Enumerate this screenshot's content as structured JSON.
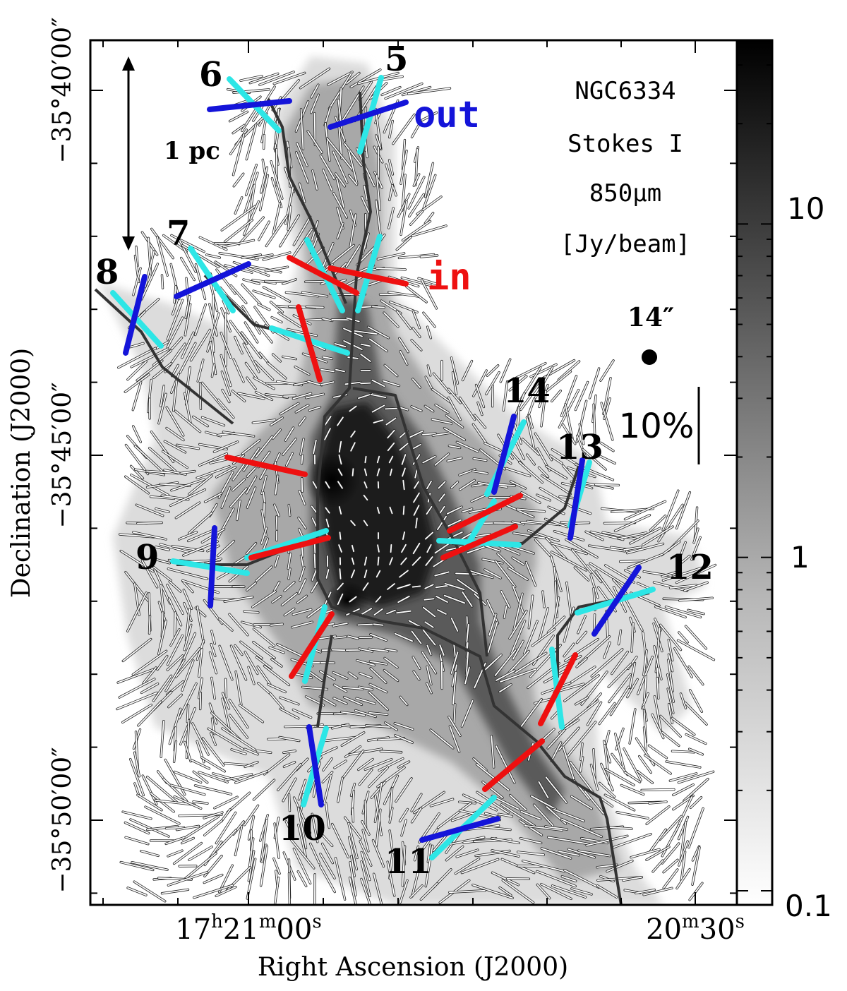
{
  "figure": {
    "axes": {
      "xlabel": "Right Ascension (J2000)",
      "ylabel": "Declination (J2000)",
      "xticks": [
        {
          "h": "17",
          "m": "21",
          "s": "00",
          "hu": "h",
          "mu": "m",
          "su": "s"
        },
        {
          "m": "20",
          "s": "30",
          "mu": "m",
          "su": "s"
        }
      ],
      "yticks": [
        "−35°40′00″",
        "−35°45′00″",
        "−35°50′00″"
      ]
    },
    "colorbar": {
      "labels": [
        "10",
        "1",
        "0.1"
      ],
      "scale": "log",
      "range": [
        0.1,
        30
      ]
    },
    "legend": {
      "source": "NGC6334",
      "stokes": "Stokes I",
      "wavelength": "850μm",
      "unit": "[Jy/beam]",
      "beam": "14″",
      "pol_scale": "10%",
      "scalebar": "1 pc",
      "out_label": "out",
      "in_label": "in"
    },
    "filament_labels": [
      "5",
      "6",
      "7",
      "8",
      "9",
      "10",
      "11",
      "12",
      "13",
      "14"
    ],
    "colors": {
      "out": "#1414d9",
      "in": "#ee1010",
      "filament": "#2de6e6",
      "spine": "#333333",
      "vector": "#ffffff"
    }
  }
}
